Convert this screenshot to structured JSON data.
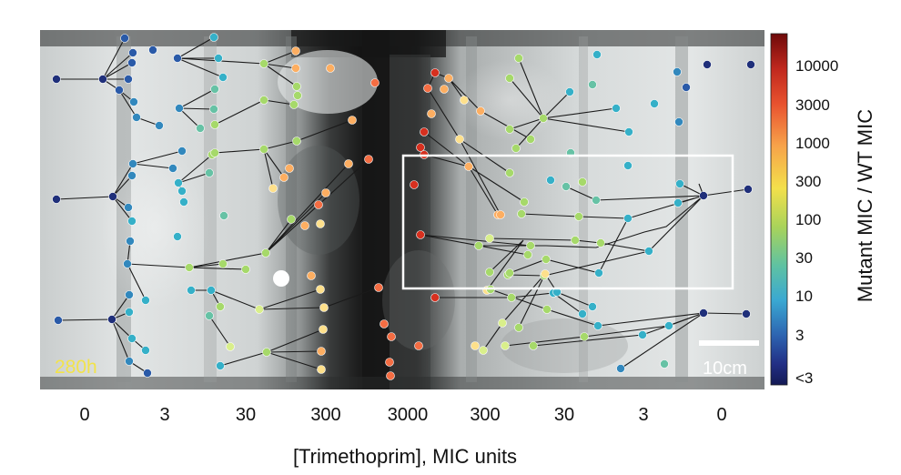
{
  "figure": {
    "time_label": "280h",
    "scale_bar_label": "10cm",
    "x_axis": {
      "title": "[Trimethoprim], MIC units",
      "ticks": [
        "0",
        "3",
        "30",
        "300",
        "3000",
        "300",
        "30",
        "3",
        "0"
      ]
    },
    "colorbar": {
      "title": "Mutant MIC / WT MIC",
      "ticks": [
        "10000",
        "3000",
        "1000",
        "300",
        "100",
        "30",
        "10",
        "3",
        "<3"
      ],
      "colors": [
        "#7a0a0a",
        "#d7301f",
        "#f46d43",
        "#fdae61",
        "#fee08b",
        "#d9ef8b",
        "#a6d96a",
        "#66c2a5",
        "#35b0c8",
        "#3288bd",
        "#2a5aa8",
        "#1f2f7a",
        "#141a5a"
      ]
    },
    "colors": {
      "background": "#ffffff",
      "plate_light": "#d8dcdc",
      "plate_dark": "#1a1a1a",
      "selection_box": "#ffffff",
      "time_label": "#f2e34a"
    }
  }
}
